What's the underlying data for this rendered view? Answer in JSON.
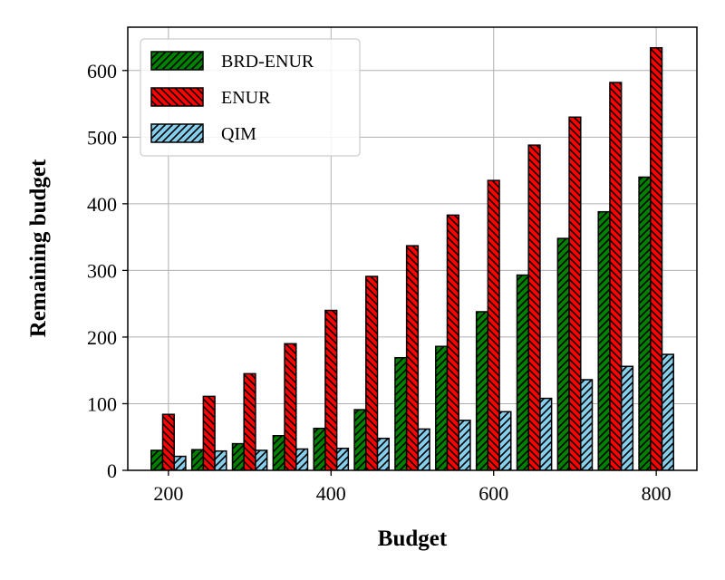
{
  "chart_data": {
    "type": "bar",
    "title": "",
    "xlabel": "Budget",
    "ylabel": "Remaining budget",
    "categories": [
      200,
      250,
      300,
      350,
      400,
      450,
      500,
      550,
      600,
      650,
      700,
      750,
      800
    ],
    "x_ticks": [
      200,
      400,
      600,
      800
    ],
    "y_ticks": [
      0,
      100,
      200,
      300,
      400,
      500,
      600
    ],
    "xlim": [
      150,
      850
    ],
    "ylim": [
      0,
      665
    ],
    "grid": true,
    "legend_position": "top-left",
    "series": [
      {
        "name": "BRD-ENUR",
        "color": "#008000",
        "hatch": "forward-diagonal",
        "values": [
          30,
          31,
          40,
          52,
          63,
          91,
          169,
          186,
          238,
          293,
          348,
          388,
          440
        ]
      },
      {
        "name": "ENUR",
        "color": "#ff0000",
        "hatch": "back-diagonal",
        "values": [
          84,
          111,
          145,
          190,
          240,
          291,
          337,
          383,
          435,
          488,
          530,
          582,
          634
        ]
      },
      {
        "name": "QIM",
        "color": "#87ceeb",
        "hatch": "forward-diagonal",
        "values": [
          21,
          29,
          30,
          32,
          33,
          48,
          62,
          75,
          88,
          108,
          136,
          156,
          174
        ]
      }
    ]
  }
}
